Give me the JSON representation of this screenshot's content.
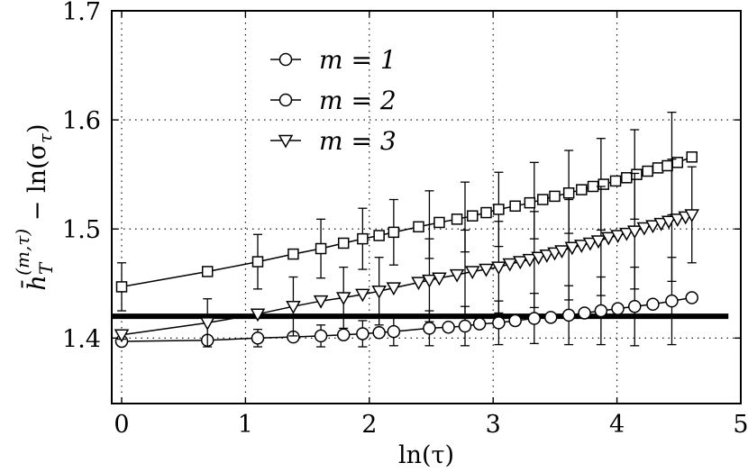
{
  "chart_data": {
    "type": "line",
    "xlabel": "ln(τ)",
    "ylabel_parts": {
      "main": "h̄",
      "sub": "T",
      "sup": "(m,τ)",
      "rest": " − ln(σ",
      "rest_sub": "τ",
      "rest_end": ")"
    },
    "xlim": [
      -0.08,
      5
    ],
    "ylim": [
      1.34,
      1.7
    ],
    "xticks": [
      0,
      1,
      2,
      3,
      4,
      5
    ],
    "xtick_labels": [
      "0",
      "1",
      "2",
      "3",
      "4",
      "5"
    ],
    "yticks": [
      1.4,
      1.5,
      1.6,
      1.7
    ],
    "ytick_labels": [
      "1.4",
      "1.5",
      "1.6",
      "1.7"
    ],
    "grid": true,
    "legend_position": "top-left",
    "reference_line": {
      "y": 1.42,
      "x_range": [
        -0.08,
        4.9
      ]
    },
    "series": [
      {
        "name": "m = 1",
        "legend_marker": "circle",
        "marker": "circle",
        "x": [
          0,
          0.693,
          1.099,
          1.386,
          1.609,
          1.792,
          1.946,
          2.079,
          2.197,
          2.303,
          2.398,
          2.485,
          2.565,
          2.639,
          2.708,
          2.773,
          2.833,
          2.89,
          2.944,
          2.996,
          3.045,
          3.091,
          3.135,
          3.178,
          3.219,
          3.258,
          3.296,
          3.332,
          3.367,
          3.401,
          3.434,
          3.466,
          3.497,
          3.526,
          3.555,
          3.584,
          3.611,
          3.638,
          3.664,
          3.689,
          3.714,
          3.738,
          3.761,
          3.784,
          3.807,
          3.829,
          3.85,
          3.871,
          3.892,
          3.912,
          3.932,
          3.951,
          3.97,
          3.989,
          4.007,
          4.025,
          4.043,
          4.06,
          4.078,
          4.094,
          4.111,
          4.127,
          4.143,
          4.159,
          4.174,
          4.19,
          4.205,
          4.22,
          4.234,
          4.248,
          4.263,
          4.277,
          4.29,
          4.304,
          4.317,
          4.331,
          4.344,
          4.357,
          4.369,
          4.382,
          4.394,
          4.407,
          4.419,
          4.431,
          4.443,
          4.454,
          4.466,
          4.477,
          4.489,
          4.5,
          4.511,
          4.522,
          4.533,
          4.543,
          4.554,
          4.564,
          4.575,
          4.585,
          4.595,
          4.605
        ],
        "x_markers": [
          0,
          0.693,
          1.099,
          1.386,
          1.609,
          1.792,
          1.946,
          2.079,
          2.197,
          2.485,
          2.639,
          2.773,
          2.89,
          3.045,
          3.178,
          3.332,
          3.466,
          3.611,
          3.738,
          3.871,
          4.007,
          4.143,
          4.29,
          4.443,
          4.605
        ],
        "y_markers": [
          1.397,
          1.398,
          1.4,
          1.401,
          1.402,
          1.403,
          1.404,
          1.405,
          1.406,
          1.409,
          1.41,
          1.411,
          1.413,
          1.414,
          1.416,
          1.418,
          1.419,
          1.421,
          1.423,
          1.425,
          1.427,
          1.429,
          1.431,
          1.434,
          1.437
        ],
        "err_x": [
          0,
          1.099,
          1.609,
          1.946,
          2.197,
          2.485,
          2.773,
          3.045,
          3.332,
          3.611,
          3.871,
          4.143,
          4.443
        ],
        "err_y": [
          1.397,
          1.4,
          1.402,
          1.404,
          1.406,
          1.409,
          1.411,
          1.414,
          1.418,
          1.421,
          1.425,
          1.429,
          1.434
        ],
        "err_half": [
          0.004,
          0.008,
          0.01,
          0.012,
          0.013,
          0.016,
          0.018,
          0.02,
          0.023,
          0.027,
          0.031,
          0.036,
          0.04
        ]
      },
      {
        "name": "m = 2",
        "legend_marker": "circle",
        "marker": "square",
        "x_markers": [
          0,
          0.693,
          1.099,
          1.386,
          1.609,
          1.792,
          1.946,
          2.079,
          2.197,
          2.398,
          2.565,
          2.708,
          2.833,
          2.944,
          3.045,
          3.178,
          3.296,
          3.401,
          3.497,
          3.611,
          3.714,
          3.807,
          3.892,
          3.989,
          4.078,
          4.159,
          4.248,
          4.331,
          4.407,
          4.489,
          4.605
        ],
        "y_markers": [
          1.447,
          1.461,
          1.47,
          1.477,
          1.482,
          1.487,
          1.491,
          1.494,
          1.497,
          1.502,
          1.506,
          1.509,
          1.512,
          1.515,
          1.518,
          1.521,
          1.524,
          1.527,
          1.53,
          1.533,
          1.536,
          1.539,
          1.541,
          1.544,
          1.547,
          1.55,
          1.553,
          1.556,
          1.558,
          1.561,
          1.566
        ],
        "err_x": [
          0,
          1.099,
          1.609,
          1.946,
          2.197,
          2.485,
          2.773,
          3.045,
          3.332,
          3.611,
          3.871,
          4.143,
          4.443
        ],
        "err_y": [
          1.447,
          1.47,
          1.482,
          1.491,
          1.497,
          1.504,
          1.511,
          1.518,
          1.526,
          1.534,
          1.541,
          1.55,
          1.56
        ],
        "err_half": [
          0.022,
          0.025,
          0.027,
          0.028,
          0.03,
          0.031,
          0.032,
          0.034,
          0.035,
          0.038,
          0.042,
          0.041,
          0.047
        ]
      },
      {
        "name": "m = 3",
        "legend_marker": "triangle-down",
        "marker": "triangle-down",
        "x_markers": [
          0,
          0.693,
          1.099,
          1.386,
          1.609,
          1.792,
          1.946,
          2.079,
          2.197,
          2.398,
          2.485,
          2.565,
          2.708,
          2.833,
          2.944,
          3.045,
          3.135,
          3.219,
          3.296,
          3.367,
          3.434,
          3.497,
          3.555,
          3.638,
          3.714,
          3.784,
          3.85,
          3.932,
          4.007,
          4.078,
          4.143,
          4.22,
          4.29,
          4.357,
          4.419,
          4.489,
          4.554,
          4.605
        ],
        "y_markers": [
          1.403,
          1.414,
          1.422,
          1.429,
          1.434,
          1.437,
          1.44,
          1.443,
          1.446,
          1.451,
          1.453,
          1.455,
          1.458,
          1.461,
          1.463,
          1.465,
          1.468,
          1.47,
          1.472,
          1.474,
          1.476,
          1.478,
          1.48,
          1.483,
          1.485,
          1.487,
          1.489,
          1.492,
          1.494,
          1.496,
          1.498,
          1.501,
          1.503,
          1.505,
          1.507,
          1.509,
          1.511,
          1.513
        ],
        "err_x": [
          0,
          0.693,
          1.386,
          1.792,
          2.079,
          2.485,
          2.773,
          3.045,
          3.332,
          3.611,
          3.871,
          4.143,
          4.443,
          4.605
        ],
        "err_y": [
          1.403,
          1.414,
          1.429,
          1.437,
          1.443,
          1.453,
          1.459,
          1.465,
          1.472,
          1.481,
          1.489,
          1.498,
          1.508,
          1.513
        ],
        "err_half": [
          0.004,
          0.022,
          0.027,
          0.028,
          0.031,
          0.038,
          0.04,
          0.042,
          0.044,
          0.046,
          0.05,
          0.053,
          0.056,
          0.044
        ]
      }
    ]
  }
}
